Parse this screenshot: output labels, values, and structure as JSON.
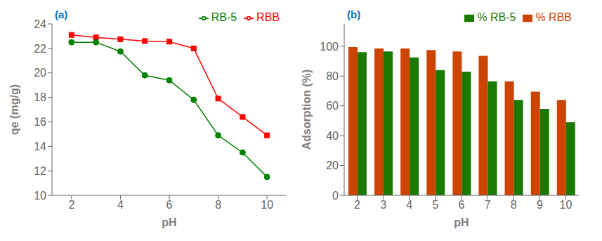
{
  "chart_data": [
    {
      "type": "line",
      "x": [
        2,
        3,
        4,
        5,
        6,
        7,
        8,
        9,
        10
      ],
      "series": [
        {
          "name": "RBB",
          "color": "#ff0000",
          "marker": "square",
          "values": [
            23.1,
            22.9,
            22.75,
            22.6,
            22.55,
            22.0,
            17.9,
            16.4,
            14.9
          ]
        },
        {
          "name": "RB-5",
          "color": "#008000",
          "marker": "circle",
          "values": [
            22.5,
            22.5,
            21.75,
            19.8,
            19.4,
            17.8,
            14.9,
            13.5,
            11.5
          ]
        }
      ],
      "x_label": "pH",
      "y_label": "qe (mg/g)",
      "xlim": [
        1.2,
        10.8
      ],
      "xticks": [
        2,
        4,
        6,
        8,
        10
      ],
      "ylim": [
        10,
        24
      ],
      "yticks": [
        10,
        12,
        14,
        16,
        18,
        20,
        22,
        24
      ],
      "legend": "upper right",
      "grid": false,
      "annotations": [
        {
          "text": "(a)",
          "color": "#0070c0"
        }
      ]
    },
    {
      "type": "bar",
      "categories": [
        "2",
        "3",
        "4",
        "5",
        "6",
        "7",
        "8",
        "9",
        "10"
      ],
      "series": [
        {
          "name": "% RBB",
          "color": "#cc4400",
          "values": [
            99.5,
            98.5,
            98.5,
            97.5,
            96.5,
            93.5,
            76.5,
            69.5,
            64.0
          ]
        },
        {
          "name": "% RB-5",
          "color": "#1a7a00",
          "values": [
            96.0,
            96.5,
            92.5,
            84.0,
            83.0,
            76.5,
            64.0,
            58.0,
            49.0
          ]
        }
      ],
      "x_label": "pH",
      "y_label": "Adsorption (%)",
      "ylim": [
        0,
        115
      ],
      "yticks": [
        0,
        20,
        40,
        60,
        80,
        100
      ],
      "legend": "upper right",
      "grid": false,
      "annotations": [
        {
          "text": "(b)",
          "color": "#0070c0"
        }
      ]
    }
  ]
}
